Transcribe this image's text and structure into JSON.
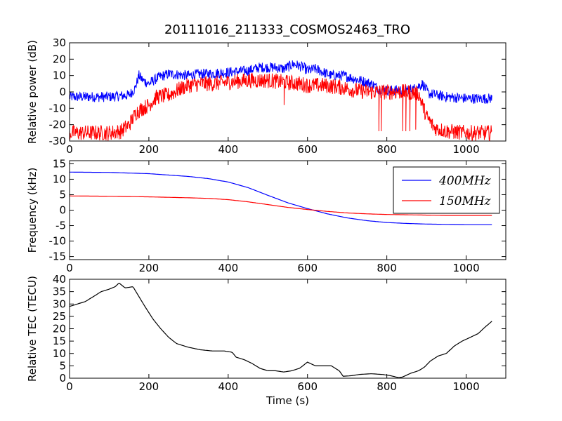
{
  "chart_data": [
    {
      "type": "line",
      "title": "20111016_211333_COSMOS2463_TRO",
      "xlabel": "",
      "ylabel": "Relative power (dB)",
      "xlim": [
        0,
        1100
      ],
      "ylim": [
        -30,
        30
      ],
      "xticks": [
        0,
        200,
        400,
        600,
        800,
        1000
      ],
      "yticks": [
        -30,
        -20,
        -10,
        0,
        10,
        20,
        30
      ],
      "grid": false,
      "series": [
        {
          "color": "#0000ff",
          "noise": 2.0,
          "points": [
            [
              0,
              -3
            ],
            [
              50,
              -3
            ],
            [
              100,
              -3
            ],
            [
              150,
              -2
            ],
            [
              165,
              2
            ],
            [
              175,
              10
            ],
            [
              185,
              7
            ],
            [
              200,
              5
            ],
            [
              225,
              9
            ],
            [
              250,
              11
            ],
            [
              300,
              10
            ],
            [
              330,
              11
            ],
            [
              350,
              11
            ],
            [
              400,
              12
            ],
            [
              450,
              13
            ],
            [
              480,
              15
            ],
            [
              520,
              15
            ],
            [
              540,
              14
            ],
            [
              565,
              17
            ],
            [
              590,
              15
            ],
            [
              600,
              13
            ],
            [
              620,
              14
            ],
            [
              640,
              12
            ],
            [
              660,
              10
            ],
            [
              690,
              10
            ],
            [
              720,
              8
            ],
            [
              760,
              5
            ],
            [
              780,
              2
            ],
            [
              800,
              1
            ],
            [
              830,
              1
            ],
            [
              870,
              2
            ],
            [
              890,
              5
            ],
            [
              905,
              -1
            ],
            [
              950,
              -3
            ],
            [
              1000,
              -4
            ],
            [
              1065,
              -4
            ]
          ]
        },
        {
          "color": "#ff0000",
          "noise": 3.0,
          "points": [
            [
              0,
              -25
            ],
            [
              100,
              -25
            ],
            [
              130,
              -24
            ],
            [
              150,
              -20
            ],
            [
              170,
              -12
            ],
            [
              185,
              -10
            ],
            [
              200,
              -8
            ],
            [
              220,
              -3
            ],
            [
              250,
              -2
            ],
            [
              280,
              2
            ],
            [
              300,
              4
            ],
            [
              330,
              5
            ],
            [
              360,
              5
            ],
            [
              400,
              6
            ],
            [
              450,
              7
            ],
            [
              500,
              7
            ],
            [
              540,
              6
            ],
            [
              580,
              5
            ],
            [
              600,
              4
            ],
            [
              640,
              4
            ],
            [
              680,
              3
            ],
            [
              720,
              1
            ],
            [
              750,
              0
            ],
            [
              800,
              0
            ],
            [
              850,
              0
            ],
            [
              880,
              -1
            ],
            [
              900,
              -15
            ],
            [
              920,
              -22
            ],
            [
              950,
              -24
            ],
            [
              1000,
              -25
            ],
            [
              1065,
              -25
            ]
          ],
          "dips": [
            [
              541,
              -8
            ],
            [
              780,
              -24
            ],
            [
              786,
              -24
            ],
            [
              840,
              -24
            ],
            [
              848,
              -24
            ],
            [
              858,
              -24
            ],
            [
              873,
              -23
            ]
          ]
        }
      ]
    },
    {
      "type": "line",
      "title": "",
      "xlabel": "",
      "ylabel": "Frequency (kHz)",
      "xlim": [
        0,
        1100
      ],
      "ylim": [
        -16,
        16
      ],
      "xticks": [
        0,
        200,
        400,
        600,
        800,
        1000
      ],
      "yticks": [
        -15,
        -10,
        -5,
        0,
        5,
        10,
        15
      ],
      "grid": false,
      "legend": {
        "placement": "top-right"
      },
      "series": [
        {
          "name": "400MHz",
          "color": "#0000ff",
          "points": [
            [
              0,
              12.3
            ],
            [
              100,
              12.2
            ],
            [
              200,
              11.8
            ],
            [
              300,
              10.9
            ],
            [
              350,
              10.2
            ],
            [
              400,
              9.1
            ],
            [
              450,
              7.3
            ],
            [
              500,
              4.8
            ],
            [
              550,
              2.4
            ],
            [
              600,
              0.5
            ],
            [
              650,
              -1.2
            ],
            [
              700,
              -2.5
            ],
            [
              750,
              -3.4
            ],
            [
              800,
              -4.0
            ],
            [
              850,
              -4.3
            ],
            [
              900,
              -4.5
            ],
            [
              950,
              -4.6
            ],
            [
              1000,
              -4.7
            ],
            [
              1065,
              -4.7
            ]
          ]
        },
        {
          "name": "150MHz",
          "color": "#ff0000",
          "points": [
            [
              0,
              4.6
            ],
            [
              100,
              4.5
            ],
            [
              200,
              4.3
            ],
            [
              300,
              4.0
            ],
            [
              350,
              3.8
            ],
            [
              400,
              3.4
            ],
            [
              450,
              2.7
            ],
            [
              500,
              1.8
            ],
            [
              550,
              0.9
            ],
            [
              600,
              0.2
            ],
            [
              650,
              -0.4
            ],
            [
              700,
              -0.9
            ],
            [
              750,
              -1.2
            ],
            [
              800,
              -1.4
            ],
            [
              850,
              -1.5
            ],
            [
              900,
              -1.6
            ],
            [
              950,
              -1.7
            ],
            [
              1000,
              -1.7
            ],
            [
              1065,
              -1.7
            ]
          ]
        }
      ]
    },
    {
      "type": "line",
      "title": "",
      "xlabel": "Time (s)",
      "ylabel": "Relative TEC (TECU)",
      "xlim": [
        0,
        1100
      ],
      "ylim": [
        0,
        40
      ],
      "xticks": [
        0,
        200,
        400,
        600,
        800,
        1000
      ],
      "yticks": [
        0,
        5,
        10,
        15,
        20,
        25,
        30,
        35,
        40
      ],
      "grid": false,
      "series": [
        {
          "color": "#000000",
          "points": [
            [
              0,
              29
            ],
            [
              20,
              30
            ],
            [
              40,
              31
            ],
            [
              60,
              33
            ],
            [
              80,
              35
            ],
            [
              100,
              36
            ],
            [
              115,
              37
            ],
            [
              125,
              38.5
            ],
            [
              140,
              36.5
            ],
            [
              160,
              37
            ],
            [
              175,
              33
            ],
            [
              190,
              29
            ],
            [
              210,
              24
            ],
            [
              230,
              20
            ],
            [
              250,
              16.5
            ],
            [
              270,
              14
            ],
            [
              300,
              12.5
            ],
            [
              330,
              11.5
            ],
            [
              360,
              11
            ],
            [
              390,
              11
            ],
            [
              410,
              10.5
            ],
            [
              420,
              8.5
            ],
            [
              440,
              7.5
            ],
            [
              460,
              6
            ],
            [
              480,
              4
            ],
            [
              500,
              3
            ],
            [
              520,
              3
            ],
            [
              540,
              2.5
            ],
            [
              560,
              3
            ],
            [
              580,
              4
            ],
            [
              600,
              6.5
            ],
            [
              620,
              5
            ],
            [
              640,
              5
            ],
            [
              660,
              5
            ],
            [
              680,
              3
            ],
            [
              690,
              0.8
            ],
            [
              710,
              1
            ],
            [
              730,
              1.5
            ],
            [
              760,
              1.8
            ],
            [
              790,
              1.5
            ],
            [
              810,
              1
            ],
            [
              830,
              0.2
            ],
            [
              840,
              0.5
            ],
            [
              860,
              2
            ],
            [
              880,
              3
            ],
            [
              895,
              4.5
            ],
            [
              910,
              7
            ],
            [
              930,
              9
            ],
            [
              950,
              10
            ],
            [
              970,
              13
            ],
            [
              990,
              15
            ],
            [
              1010,
              16.5
            ],
            [
              1030,
              18
            ],
            [
              1050,
              21
            ],
            [
              1065,
              23
            ]
          ]
        }
      ]
    }
  ]
}
